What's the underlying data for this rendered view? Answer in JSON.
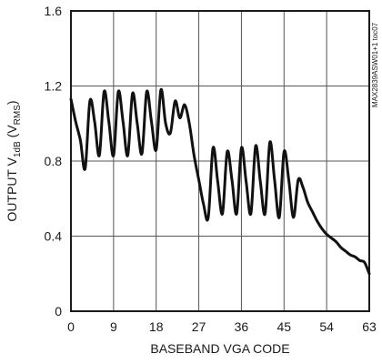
{
  "chart_data": {
    "type": "line",
    "xlabel": "BASEBAND VGA CODE",
    "ylabel": {
      "prefix": "OUTPUT V",
      "prefix_sub": "1dB",
      "mid": " (V",
      "suffix_sub": "RMS",
      "end": ")"
    },
    "side_id": "MAX2839ASW01+1 toc07",
    "xlim": [
      0,
      63
    ],
    "ylim": [
      0,
      1.6
    ],
    "xticks": [
      0,
      9,
      18,
      27,
      36,
      45,
      54,
      63
    ],
    "xtick_labels": [
      "0",
      "9",
      "18",
      "27",
      "36",
      "45",
      "54",
      "63"
    ],
    "yticks": [
      0,
      0.4,
      0.8,
      1.2,
      1.6
    ],
    "ytick_labels": [
      "0",
      "0.4",
      "0.8",
      "1.2",
      "1.6"
    ],
    "grid": true,
    "series": [
      {
        "color": "#111111",
        "x": [
          0,
          1,
          2,
          3,
          4,
          5,
          6,
          7,
          8,
          9,
          10,
          11,
          12,
          13,
          14,
          15,
          16,
          17,
          18,
          19,
          20,
          21,
          22,
          23,
          24,
          25,
          26,
          27,
          28,
          29,
          30,
          31,
          32,
          33,
          34,
          35,
          36,
          37,
          38,
          39,
          40,
          41,
          42,
          43,
          44,
          45,
          46,
          47,
          48,
          49,
          50,
          51,
          52,
          53,
          54,
          55,
          56,
          57,
          58,
          59,
          60,
          61,
          62,
          63
        ],
        "y": [
          1.13,
          1.01,
          0.91,
          0.76,
          1.12,
          1.01,
          0.83,
          1.17,
          1.01,
          0.83,
          1.17,
          1.01,
          0.83,
          1.16,
          1.0,
          0.84,
          1.17,
          1.01,
          0.86,
          1.18,
          1.0,
          0.95,
          1.12,
          1.03,
          1.1,
          1.0,
          0.83,
          0.7,
          0.57,
          0.5,
          0.87,
          0.69,
          0.52,
          0.85,
          0.7,
          0.52,
          0.87,
          0.69,
          0.52,
          0.88,
          0.69,
          0.52,
          0.9,
          0.7,
          0.5,
          0.85,
          0.7,
          0.5,
          0.7,
          0.66,
          0.58,
          0.53,
          0.48,
          0.44,
          0.41,
          0.39,
          0.37,
          0.34,
          0.32,
          0.3,
          0.29,
          0.27,
          0.26,
          0.2
        ]
      }
    ]
  }
}
